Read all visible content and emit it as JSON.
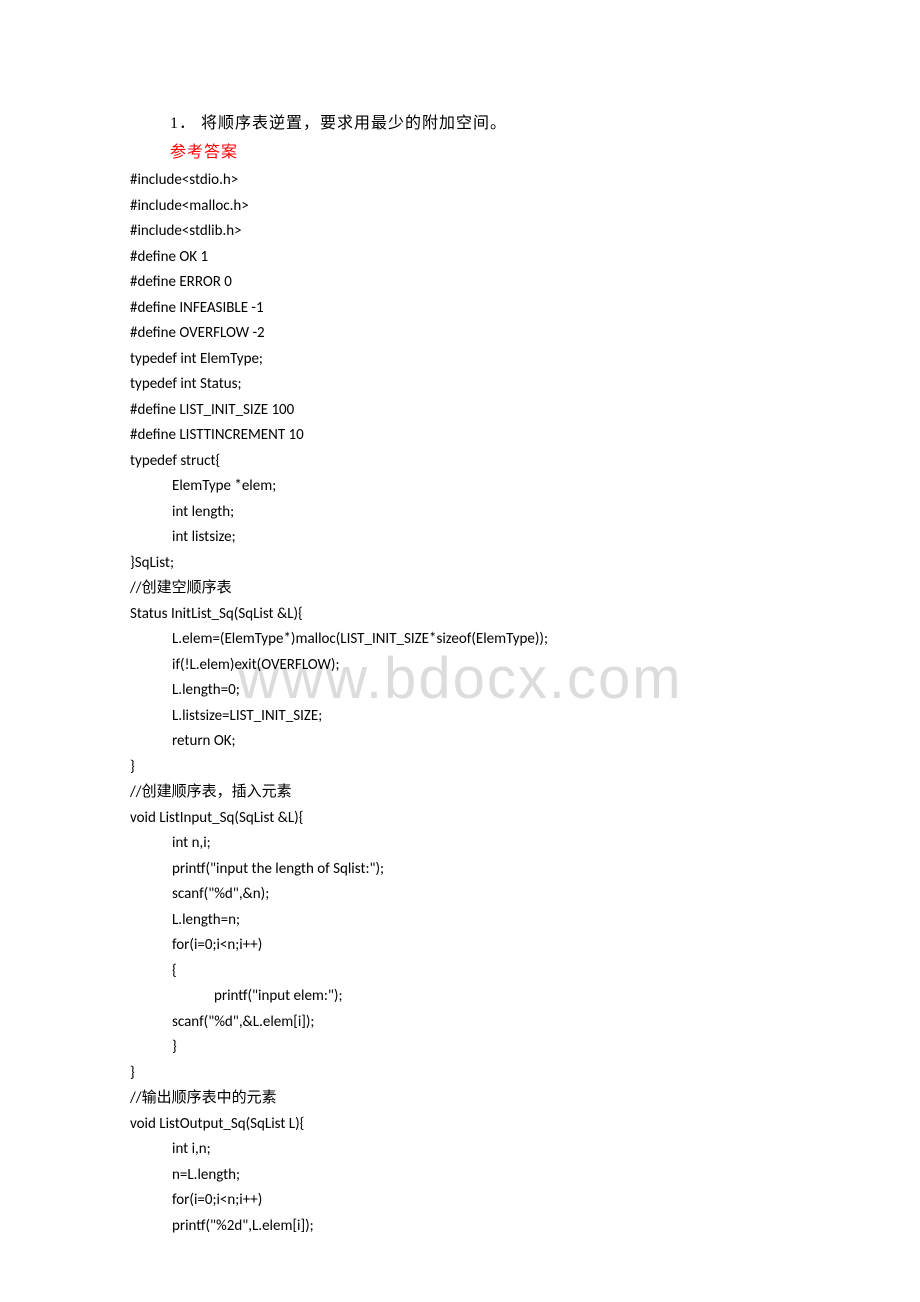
{
  "watermark": "www.bdocx.com",
  "title": "1． 将顺序表逆置，要求用最少的附加空间。",
  "answer_label": "参考答案",
  "lines": [
    {
      "text": "#include<stdio.h>",
      "indent": 0
    },
    {
      "text": "#include<malloc.h>",
      "indent": 0
    },
    {
      "text": "#include<stdlib.h>",
      "indent": 0
    },
    {
      "text": "#define OK 1",
      "indent": 0
    },
    {
      "text": "#define ERROR 0",
      "indent": 0
    },
    {
      "text": "#define INFEASIBLE -1",
      "indent": 0
    },
    {
      "text": "#define OVERFLOW -2",
      "indent": 0
    },
    {
      "text": "typedef int ElemType;",
      "indent": 0
    },
    {
      "text": "typedef int Status;",
      "indent": 0
    },
    {
      "text": "#define LIST_INIT_SIZE 100",
      "indent": 0
    },
    {
      "text": "#define LISTTINCREMENT 10",
      "indent": 0
    },
    {
      "text": "typedef struct{",
      "indent": 0
    },
    {
      "text": "ElemType *elem;",
      "indent": 1
    },
    {
      "text": "int length;",
      "indent": 1
    },
    {
      "text": "int listsize;",
      "indent": 1
    },
    {
      "text": "}SqList;",
      "indent": 0
    },
    {
      "text": "//创建空顺序表",
      "indent": 0
    },
    {
      "text": "Status InitList_Sq(SqList &L){",
      "indent": 0
    },
    {
      "text": "L.elem=(ElemType*)malloc(LIST_INIT_SIZE*sizeof(ElemType));",
      "indent": 1
    },
    {
      "text": "if(!L.elem)exit(OVERFLOW);",
      "indent": 1
    },
    {
      "text": "L.length=0;",
      "indent": 1
    },
    {
      "text": "L.listsize=LIST_INIT_SIZE;",
      "indent": 1
    },
    {
      "text": "return OK;",
      "indent": 1
    },
    {
      "text": "}",
      "indent": 0
    },
    {
      "text": "//创建顺序表，插入元素",
      "indent": 0
    },
    {
      "text": "void ListInput_Sq(SqList &L){",
      "indent": 0
    },
    {
      "text": "int n,i;",
      "indent": 1
    },
    {
      "text": "printf(\"input the length of Sqlist:\");",
      "indent": 1
    },
    {
      "text": "scanf(\"%d\",&n);",
      "indent": 1
    },
    {
      "text": "L.length=n;",
      "indent": 1
    },
    {
      "text": "for(i=0;i<n;i++)",
      "indent": 1
    },
    {
      "text": "{",
      "indent": 1
    },
    {
      "text": "printf(\"input elem:\");",
      "indent": 2
    },
    {
      "text": "scanf(\"%d\",&L.elem[i]);",
      "indent": 1
    },
    {
      "text": "}",
      "indent": 1
    },
    {
      "text": "}",
      "indent": 0
    },
    {
      "text": "//输出顺序表中的元素",
      "indent": 0
    },
    {
      "text": "void ListOutput_Sq(SqList L){",
      "indent": 0
    },
    {
      "text": "int i,n;",
      "indent": 1
    },
    {
      "text": "n=L.length;",
      "indent": 1
    },
    {
      "text": "for(i=0;i<n;i++)",
      "indent": 1
    },
    {
      "text": "printf(\"%2d\",L.elem[i]);",
      "indent": 1
    }
  ]
}
